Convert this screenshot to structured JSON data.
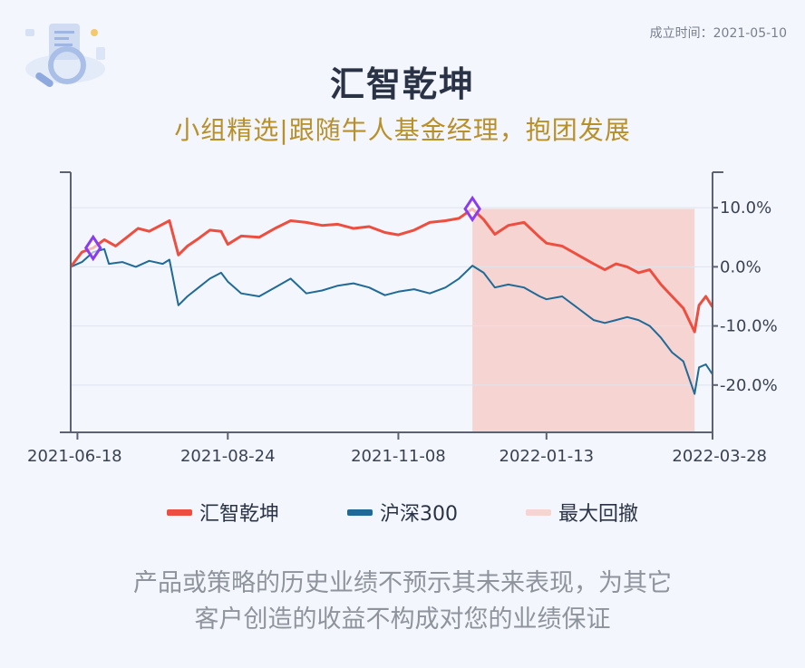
{
  "header": {
    "established_label": "成立时间：",
    "established_date": "2021-05-10",
    "title": "汇智乾坤",
    "subtitle": "小组精选|跟随牛人基金经理，抱团发展"
  },
  "legend": {
    "items": [
      {
        "label": "汇智乾坤",
        "color": "#ee4e3f"
      },
      {
        "label": "沪深300",
        "color": "#1f6a96"
      },
      {
        "label": "最大回撤",
        "color": "#f6d4d2"
      }
    ]
  },
  "disclaimer": {
    "line1": "产品或策略的历史业绩不预示其未来表现，为其它",
    "line2": "客户创造的收益不构成对您的业绩保证"
  },
  "chart_data": {
    "type": "line",
    "x_start": "2021-06-15",
    "x_end": "2022-03-28",
    "x_ticks": [
      "2021-06-18",
      "2021-08-24",
      "2021-11-08",
      "2022-01-13",
      "2022-03-28"
    ],
    "y_ticks": [
      10,
      0,
      -10,
      -20
    ],
    "y_tick_labels": [
      "10.0%",
      "0.0%",
      "-10.0%",
      "-20.0%"
    ],
    "ylim": [
      -28,
      16
    ],
    "grid": true,
    "drawdown_range": [
      "2021-12-11",
      "2022-03-20"
    ],
    "markers": [
      {
        "date": "2021-06-25",
        "value": 3.2
      },
      {
        "date": "2021-12-11",
        "value": 9.8
      }
    ],
    "series": [
      {
        "name": "汇智乾坤",
        "color": "#ee4e3f",
        "points": [
          [
            "2021-06-15",
            0.0
          ],
          [
            "2021-06-20",
            2.5
          ],
          [
            "2021-06-25",
            3.2
          ],
          [
            "2021-06-30",
            4.6
          ],
          [
            "2021-07-05",
            3.5
          ],
          [
            "2021-07-10",
            5.0
          ],
          [
            "2021-07-15",
            6.5
          ],
          [
            "2021-07-20",
            6.0
          ],
          [
            "2021-07-25",
            7.0
          ],
          [
            "2021-07-29",
            7.8
          ],
          [
            "2021-08-02",
            2.0
          ],
          [
            "2021-08-06",
            3.5
          ],
          [
            "2021-08-11",
            4.8
          ],
          [
            "2021-08-16",
            6.2
          ],
          [
            "2021-08-21",
            6.0
          ],
          [
            "2021-08-24",
            3.8
          ],
          [
            "2021-08-30",
            5.2
          ],
          [
            "2021-09-07",
            5.0
          ],
          [
            "2021-09-14",
            6.5
          ],
          [
            "2021-09-21",
            7.8
          ],
          [
            "2021-09-28",
            7.5
          ],
          [
            "2021-10-05",
            7.0
          ],
          [
            "2021-10-12",
            7.2
          ],
          [
            "2021-10-19",
            6.5
          ],
          [
            "2021-10-26",
            6.8
          ],
          [
            "2021-11-02",
            5.8
          ],
          [
            "2021-11-08",
            5.4
          ],
          [
            "2021-11-15",
            6.2
          ],
          [
            "2021-11-22",
            7.5
          ],
          [
            "2021-11-29",
            7.8
          ],
          [
            "2021-12-05",
            8.2
          ],
          [
            "2021-12-11",
            9.8
          ],
          [
            "2021-12-16",
            8.0
          ],
          [
            "2021-12-21",
            5.5
          ],
          [
            "2021-12-27",
            7.0
          ],
          [
            "2022-01-03",
            7.5
          ],
          [
            "2022-01-10",
            5.0
          ],
          [
            "2022-01-13",
            4.0
          ],
          [
            "2022-01-20",
            3.5
          ],
          [
            "2022-01-27",
            2.0
          ],
          [
            "2022-02-03",
            0.5
          ],
          [
            "2022-02-08",
            -0.5
          ],
          [
            "2022-02-13",
            0.5
          ],
          [
            "2022-02-18",
            0.0
          ],
          [
            "2022-02-23",
            -1.0
          ],
          [
            "2022-02-28",
            -0.5
          ],
          [
            "2022-03-05",
            -3.0
          ],
          [
            "2022-03-10",
            -5.0
          ],
          [
            "2022-03-15",
            -7.0
          ],
          [
            "2022-03-20",
            -11.0
          ],
          [
            "2022-03-22",
            -6.5
          ],
          [
            "2022-03-25",
            -5.0
          ],
          [
            "2022-03-28",
            -6.8
          ]
        ]
      },
      {
        "name": "沪深300",
        "color": "#1f6a96",
        "points": [
          [
            "2021-06-15",
            0.0
          ],
          [
            "2021-06-20",
            0.8
          ],
          [
            "2021-06-25",
            2.5
          ],
          [
            "2021-06-30",
            3.0
          ],
          [
            "2021-07-02",
            0.5
          ],
          [
            "2021-07-08",
            0.8
          ],
          [
            "2021-07-14",
            0.0
          ],
          [
            "2021-07-20",
            1.0
          ],
          [
            "2021-07-26",
            0.5
          ],
          [
            "2021-07-29",
            1.2
          ],
          [
            "2021-08-02",
            -6.5
          ],
          [
            "2021-08-06",
            -5.0
          ],
          [
            "2021-08-11",
            -3.5
          ],
          [
            "2021-08-16",
            -2.0
          ],
          [
            "2021-08-21",
            -1.0
          ],
          [
            "2021-08-24",
            -2.5
          ],
          [
            "2021-08-30",
            -4.5
          ],
          [
            "2021-09-07",
            -5.0
          ],
          [
            "2021-09-14",
            -3.5
          ],
          [
            "2021-09-21",
            -2.0
          ],
          [
            "2021-09-28",
            -4.5
          ],
          [
            "2021-10-05",
            -4.0
          ],
          [
            "2021-10-12",
            -3.2
          ],
          [
            "2021-10-19",
            -2.8
          ],
          [
            "2021-10-26",
            -3.5
          ],
          [
            "2021-11-02",
            -4.8
          ],
          [
            "2021-11-08",
            -4.2
          ],
          [
            "2021-11-15",
            -3.8
          ],
          [
            "2021-11-22",
            -4.5
          ],
          [
            "2021-11-29",
            -3.5
          ],
          [
            "2021-12-05",
            -2.0
          ],
          [
            "2021-12-11",
            0.2
          ],
          [
            "2021-12-16",
            -1.0
          ],
          [
            "2021-12-21",
            -3.5
          ],
          [
            "2021-12-27",
            -3.0
          ],
          [
            "2022-01-03",
            -3.5
          ],
          [
            "2022-01-10",
            -5.0
          ],
          [
            "2022-01-13",
            -5.5
          ],
          [
            "2022-01-20",
            -5.0
          ],
          [
            "2022-01-27",
            -7.0
          ],
          [
            "2022-02-03",
            -9.0
          ],
          [
            "2022-02-08",
            -9.5
          ],
          [
            "2022-02-13",
            -9.0
          ],
          [
            "2022-02-18",
            -8.5
          ],
          [
            "2022-02-23",
            -9.0
          ],
          [
            "2022-02-28",
            -10.0
          ],
          [
            "2022-03-05",
            -12.0
          ],
          [
            "2022-03-10",
            -14.5
          ],
          [
            "2022-03-15",
            -16.0
          ],
          [
            "2022-03-20",
            -21.5
          ],
          [
            "2022-03-22",
            -17.0
          ],
          [
            "2022-03-25",
            -16.5
          ],
          [
            "2022-03-28",
            -18.2
          ]
        ]
      }
    ]
  }
}
